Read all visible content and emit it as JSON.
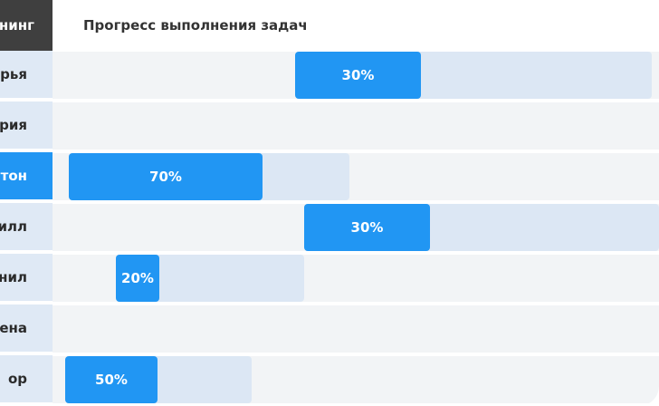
{
  "header": {
    "left_label": "нинг",
    "title": "Прогресс выполнения задач"
  },
  "rows": [
    {
      "name": "рья",
      "progress_label": "30%",
      "progress": 0.3,
      "active": false,
      "has_bar": true
    },
    {
      "name": "рия",
      "progress_label": "",
      "progress": null,
      "active": false,
      "has_bar": false
    },
    {
      "name": "тон",
      "progress_label": "70%",
      "progress": 0.7,
      "active": true,
      "has_bar": true
    },
    {
      "name": "рилл",
      "progress_label": "30%",
      "progress": 0.3,
      "active": false,
      "has_bar": true
    },
    {
      "name": "нил",
      "progress_label": "20%",
      "progress": 0.2,
      "active": false,
      "has_bar": true
    },
    {
      "name": "ена",
      "progress_label": "",
      "progress": null,
      "active": false,
      "has_bar": false
    },
    {
      "name": "ор",
      "progress_label": "50%",
      "progress": 0.5,
      "active": false,
      "has_bar": true
    }
  ],
  "colors": {
    "accent": "#2196f3",
    "header_dark": "#3f3f3f",
    "track": "#f2f4f6",
    "range": "#dce7f4"
  }
}
